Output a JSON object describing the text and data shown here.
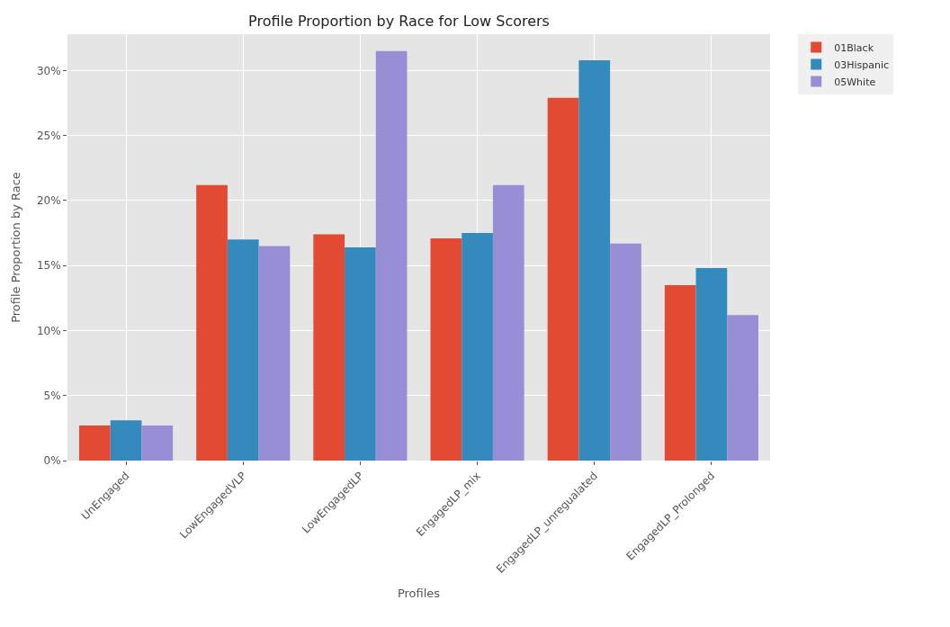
{
  "chart_data": {
    "type": "bar",
    "title": "Profile Proportion by Race for Low Scorers",
    "xlabel": "Profiles",
    "ylabel": "Profile Proportion by Race",
    "categories": [
      "UnEngaged",
      "LowEngagedVLP",
      "LowEngagedLP",
      "EngagedLP_mix",
      "EngagedLP_unregualated",
      "EngagedLP_Prolonged"
    ],
    "series": [
      {
        "name": "01Black",
        "color": "#e24a33",
        "values": [
          2.7,
          21.2,
          17.4,
          17.1,
          27.9,
          13.5
        ]
      },
      {
        "name": "03Hispanic",
        "color": "#348abd",
        "values": [
          3.1,
          17.0,
          16.4,
          17.5,
          30.8,
          14.8
        ]
      },
      {
        "name": "05White",
        "color": "#988ed5",
        "values": [
          2.7,
          16.5,
          31.5,
          21.2,
          16.7,
          11.2
        ]
      }
    ],
    "ylim": [
      0,
      32.8
    ],
    "yticks": [
      {
        "value": 0,
        "label": "0%"
      },
      {
        "value": 5,
        "label": "5%"
      },
      {
        "value": 10,
        "label": "10%"
      },
      {
        "value": 15,
        "label": "15%"
      },
      {
        "value": 20,
        "label": "20%"
      },
      {
        "value": 25,
        "label": "25%"
      },
      {
        "value": 30,
        "label": "30%"
      }
    ],
    "grid": true,
    "legend": "top right"
  }
}
